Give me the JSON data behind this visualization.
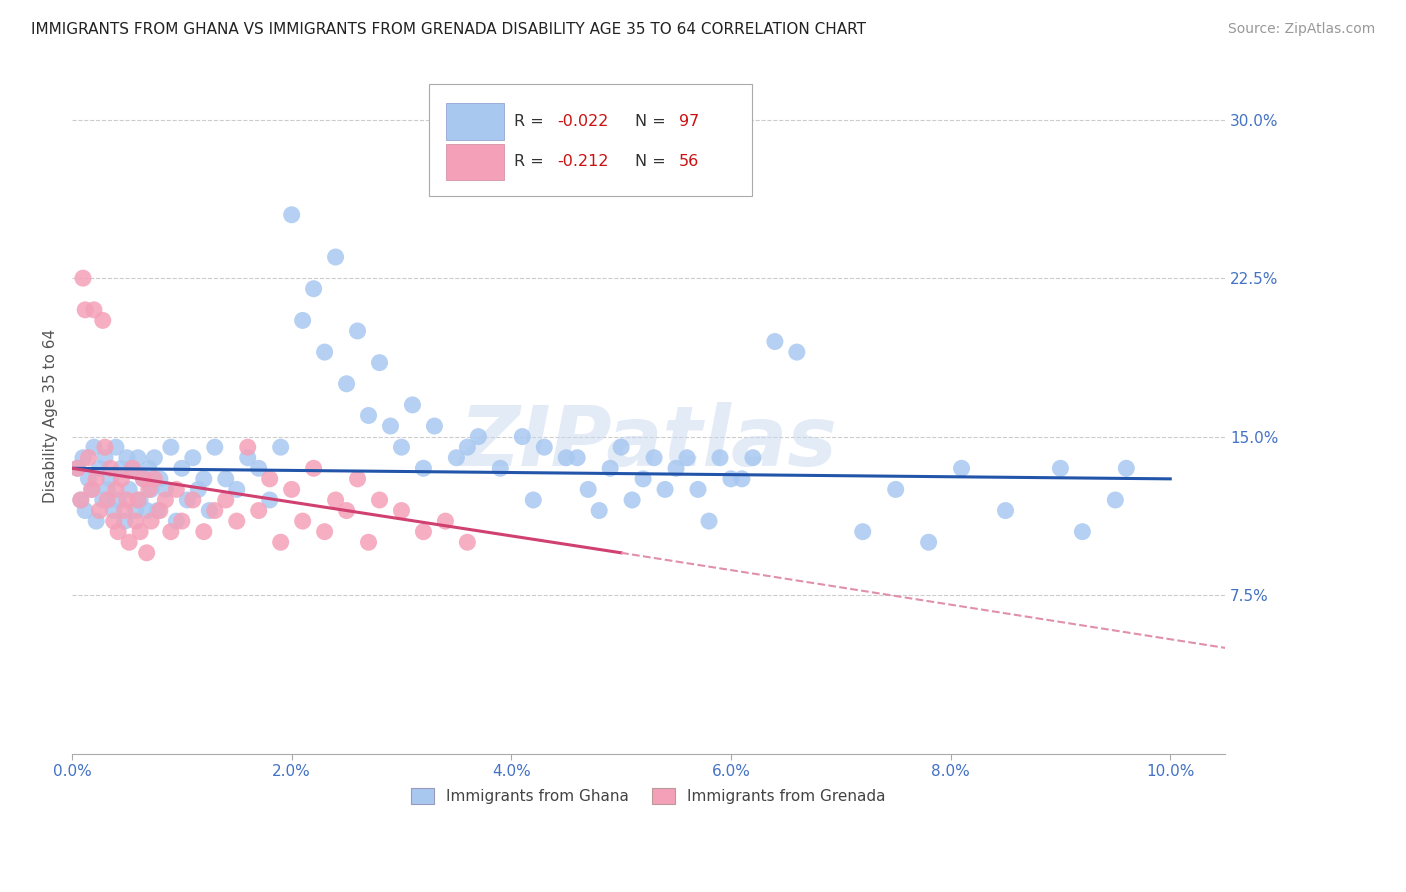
{
  "title": "IMMIGRANTS FROM GHANA VS IMMIGRANTS FROM GRENADA DISABILITY AGE 35 TO 64 CORRELATION CHART",
  "source": "Source: ZipAtlas.com",
  "ylabel": "Disability Age 35 to 64",
  "x_tick_labels": [
    "0.0%",
    "2.0%",
    "4.0%",
    "6.0%",
    "8.0%",
    "10.0%"
  ],
  "x_tick_values": [
    0.0,
    2.0,
    4.0,
    6.0,
    8.0,
    10.0
  ],
  "y_tick_labels": [
    "7.5%",
    "15.0%",
    "22.5%",
    "30.0%"
  ],
  "y_tick_values": [
    7.5,
    15.0,
    22.5,
    30.0
  ],
  "xlim": [
    0.0,
    10.5
  ],
  "ylim": [
    0.0,
    32.0
  ],
  "ghana_R": -0.022,
  "ghana_N": 97,
  "grenada_R": -0.212,
  "grenada_N": 56,
  "ghana_color": "#a8c8f0",
  "grenada_color": "#f4a0b8",
  "ghana_line_color": "#2255aa",
  "grenada_line_color_solid": "#d04070",
  "grenada_line_color_dash": "#e090a8",
  "watermark": "ZIPatlas",
  "legend_R_val1": "-0.022",
  "legend_N_val1": "97",
  "legend_R_val2": "-0.212",
  "legend_N_val2": "56",
  "ghana_scatter_x": [
    0.05,
    0.08,
    0.1,
    0.12,
    0.15,
    0.18,
    0.2,
    0.22,
    0.25,
    0.28,
    0.3,
    0.32,
    0.35,
    0.38,
    0.4,
    0.42,
    0.45,
    0.48,
    0.5,
    0.52,
    0.55,
    0.58,
    0.6,
    0.62,
    0.65,
    0.68,
    0.7,
    0.72,
    0.75,
    0.78,
    0.8,
    0.85,
    0.9,
    0.95,
    1.0,
    1.05,
    1.1,
    1.15,
    1.2,
    1.25,
    1.3,
    1.4,
    1.5,
    1.6,
    1.7,
    1.8,
    1.9,
    2.0,
    2.1,
    2.2,
    2.3,
    2.4,
    2.5,
    2.6,
    2.7,
    2.8,
    2.9,
    3.0,
    3.1,
    3.2,
    3.3,
    3.5,
    3.7,
    3.9,
    4.1,
    4.3,
    4.5,
    4.7,
    4.9,
    5.1,
    5.3,
    5.5,
    5.7,
    5.9,
    6.1,
    6.4,
    6.6,
    7.2,
    7.5,
    7.8,
    8.1,
    8.5,
    9.0,
    9.2,
    9.5,
    9.6,
    3.6,
    4.2,
    4.6,
    4.8,
    5.0,
    5.2,
    5.4,
    5.6,
    5.8,
    6.0,
    6.2
  ],
  "ghana_scatter_y": [
    13.5,
    12.0,
    14.0,
    11.5,
    13.0,
    12.5,
    14.5,
    11.0,
    13.5,
    12.0,
    14.0,
    12.5,
    13.0,
    11.5,
    14.5,
    12.0,
    13.5,
    11.0,
    14.0,
    12.5,
    13.5,
    11.5,
    14.0,
    12.0,
    13.0,
    11.5,
    13.5,
    12.5,
    14.0,
    11.5,
    13.0,
    12.5,
    14.5,
    11.0,
    13.5,
    12.0,
    14.0,
    12.5,
    13.0,
    11.5,
    14.5,
    13.0,
    12.5,
    14.0,
    13.5,
    12.0,
    14.5,
    25.5,
    20.5,
    22.0,
    19.0,
    23.5,
    17.5,
    20.0,
    16.0,
    18.5,
    15.5,
    14.5,
    16.5,
    13.5,
    15.5,
    14.0,
    15.0,
    13.5,
    15.0,
    14.5,
    14.0,
    12.5,
    13.5,
    12.0,
    14.0,
    13.5,
    12.5,
    14.0,
    13.0,
    19.5,
    19.0,
    10.5,
    12.5,
    10.0,
    13.5,
    11.5,
    13.5,
    10.5,
    12.0,
    13.5,
    14.5,
    12.0,
    14.0,
    11.5,
    14.5,
    13.0,
    12.5,
    14.0,
    11.0,
    13.0,
    14.0
  ],
  "grenada_scatter_x": [
    0.05,
    0.08,
    0.1,
    0.12,
    0.15,
    0.18,
    0.2,
    0.22,
    0.25,
    0.28,
    0.3,
    0.32,
    0.35,
    0.38,
    0.4,
    0.42,
    0.45,
    0.48,
    0.5,
    0.52,
    0.55,
    0.58,
    0.6,
    0.62,
    0.65,
    0.68,
    0.7,
    0.72,
    0.75,
    0.8,
    0.85,
    0.9,
    0.95,
    1.0,
    1.1,
    1.2,
    1.3,
    1.4,
    1.5,
    1.6,
    1.7,
    1.8,
    1.9,
    2.0,
    2.1,
    2.2,
    2.3,
    2.4,
    2.5,
    2.6,
    2.7,
    2.8,
    3.0,
    3.2,
    3.4,
    3.6
  ],
  "grenada_scatter_y": [
    13.5,
    12.0,
    22.5,
    21.0,
    14.0,
    12.5,
    21.0,
    13.0,
    11.5,
    20.5,
    14.5,
    12.0,
    13.5,
    11.0,
    12.5,
    10.5,
    13.0,
    11.5,
    12.0,
    10.0,
    13.5,
    11.0,
    12.0,
    10.5,
    13.0,
    9.5,
    12.5,
    11.0,
    13.0,
    11.5,
    12.0,
    10.5,
    12.5,
    11.0,
    12.0,
    10.5,
    11.5,
    12.0,
    11.0,
    14.5,
    11.5,
    13.0,
    10.0,
    12.5,
    11.0,
    13.5,
    10.5,
    12.0,
    11.5,
    13.0,
    10.0,
    12.0,
    11.5,
    10.5,
    11.0,
    10.0
  ],
  "ghana_trend_x0": 0.0,
  "ghana_trend_y0": 13.5,
  "ghana_trend_x1": 10.0,
  "ghana_trend_y1": 13.0,
  "grenada_solid_x0": 0.0,
  "grenada_solid_y0": 13.5,
  "grenada_solid_x1": 5.0,
  "grenada_solid_y1": 9.5,
  "grenada_dash_x0": 5.0,
  "grenada_dash_y0": 9.5,
  "grenada_dash_x1": 10.5,
  "grenada_dash_y1": 5.0,
  "background_color": "#ffffff",
  "grid_color": "#cccccc",
  "title_color": "#222222",
  "tick_label_color": "#4472c4"
}
